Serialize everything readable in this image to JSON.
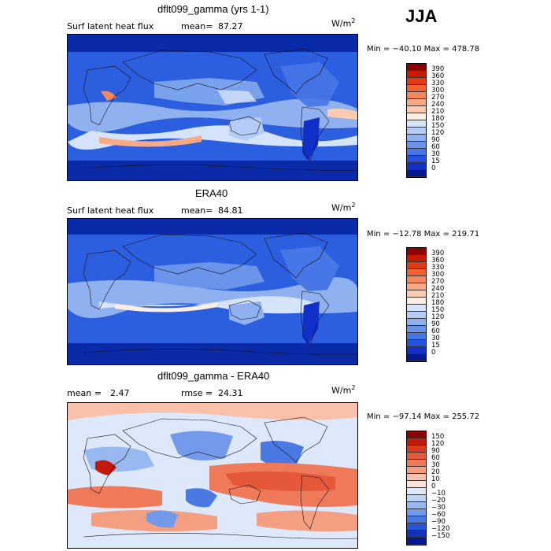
{
  "season": "JJA",
  "units_base": "W/m",
  "units_exp": "2",
  "panels": [
    {
      "title": "dflt099_gamma (yrs 1-1)",
      "left_label": "Surf latent heat flux",
      "stat_label": "mean=",
      "stat_value": "87.27",
      "stat2_label": "",
      "stat2_value": "",
      "minmax": "Min = −40.10 Max = 478.78",
      "cbar_labels": [
        "390",
        "360",
        "330",
        "300",
        "270",
        "240",
        "210",
        "180",
        "150",
        "120",
        "90",
        "60",
        "30",
        "15",
        "0"
      ],
      "cbar_colors": [
        "#8b0000",
        "#c71a00",
        "#e03a10",
        "#ee6233",
        "#f5875a",
        "#f8a985",
        "#fbcbb2",
        "#fdeee4",
        "#d6e4fb",
        "#b4ccf6",
        "#8fb1ef",
        "#6b93ea",
        "#4776e6",
        "#2452de",
        "#1030c8",
        "#061890"
      ]
    },
    {
      "title": "ERA40",
      "left_label": "Surf latent heat flux",
      "stat_label": "mean=",
      "stat_value": "84.81",
      "stat2_label": "",
      "stat2_value": "",
      "minmax": "Min = −12.78 Max = 219.71",
      "cbar_labels": [
        "390",
        "360",
        "330",
        "300",
        "270",
        "240",
        "210",
        "180",
        "150",
        "120",
        "90",
        "60",
        "30",
        "15",
        "0"
      ],
      "cbar_colors": [
        "#8b0000",
        "#c71a00",
        "#e03a10",
        "#ee6233",
        "#f5875a",
        "#f8a985",
        "#fbcbb2",
        "#fdeee4",
        "#d6e4fb",
        "#b4ccf6",
        "#8fb1ef",
        "#6b93ea",
        "#4776e6",
        "#2452de",
        "#1030c8",
        "#061890"
      ]
    },
    {
      "title": "dflt099_gamma - ERA40",
      "left_label": "",
      "stat_label": "mean =",
      "stat_value": "2.47",
      "stat2_label": "rmse =",
      "stat2_value": "24.31",
      "minmax": "Min = −97.14 Max = 255.72",
      "cbar_labels": [
        "150",
        "120",
        "90",
        "60",
        "30",
        "20",
        "10",
        "0",
        "−10",
        "−20",
        "−30",
        "−60",
        "−90",
        "−120",
        "−150"
      ],
      "cbar_colors": [
        "#8b0000",
        "#c11a0a",
        "#d93a1c",
        "#e6583a",
        "#ef7a5a",
        "#f59f82",
        "#f9c1aa",
        "#fde4d6",
        "#dde8fb",
        "#bcd3f6",
        "#98b8f0",
        "#7399ea",
        "#4b79e4",
        "#2a55d8",
        "#1232b8",
        "#061890"
      ]
    }
  ],
  "chart_data": [
    {
      "type": "heatmap",
      "title": "dflt099_gamma (yrs 1-1)",
      "variable": "Surf latent heat flux",
      "season": "JJA",
      "units": "W/m^2",
      "mean": 87.27,
      "min": -40.1,
      "max": 478.78,
      "contour_levels": [
        0,
        15,
        30,
        60,
        90,
        120,
        150,
        180,
        210,
        240,
        270,
        300,
        330,
        360,
        390
      ]
    },
    {
      "type": "heatmap",
      "title": "ERA40",
      "variable": "Surf latent heat flux",
      "season": "JJA",
      "units": "W/m^2",
      "mean": 84.81,
      "min": -12.78,
      "max": 219.71,
      "contour_levels": [
        0,
        15,
        30,
        60,
        90,
        120,
        150,
        180,
        210,
        240,
        270,
        300,
        330,
        360,
        390
      ]
    },
    {
      "type": "heatmap",
      "title": "dflt099_gamma - ERA40",
      "season": "JJA",
      "units": "W/m^2",
      "mean": 2.47,
      "rmse": 24.31,
      "min": -97.14,
      "max": 255.72,
      "contour_levels": [
        -150,
        -120,
        -90,
        -60,
        -30,
        -20,
        -10,
        0,
        10,
        20,
        30,
        60,
        90,
        120,
        150
      ]
    }
  ]
}
